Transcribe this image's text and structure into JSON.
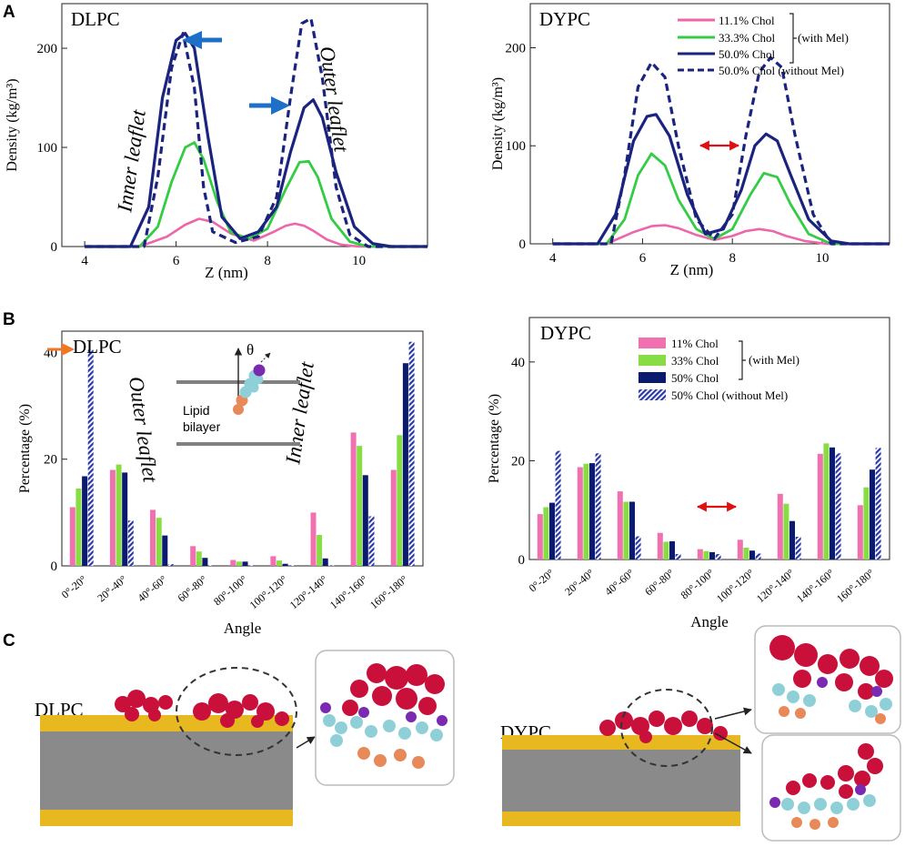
{
  "panels": {
    "A": "A",
    "B": "B",
    "C": "C"
  },
  "colors": {
    "pink": "#ee66aa",
    "green": "#33cc44",
    "navy": "#1a237e",
    "bar_pink": "#f070b0",
    "bar_green": "#88dd44",
    "bar_navy": "#0a1a6e",
    "bar_hatch": "#2b3aa8",
    "arrow_blue": "#1e6fc8",
    "arrow_red": "#dd1111",
    "arrow_orange": "#f07820",
    "lipid_yellow": "#e8b820",
    "lipid_gray": "#8a8a8a",
    "mel_red": "#c8103a",
    "chol_cyan": "#8fd0d8",
    "orange_bead": "#e8895a",
    "purple_bead": "#7a2ab0"
  },
  "annotations": {
    "inner_leaflet": "Inner leaflet",
    "outer_leaflet": "Outer leaflet",
    "theta": "θ",
    "lipid": "Lipid",
    "bilayer": "bilayer",
    "with_mel": "(with Mel)"
  },
  "structures": {
    "dlpc": "DLPC",
    "dypc": "DYPC"
  },
  "chart_data": [
    {
      "type": "line",
      "title": "DLPC",
      "xlabel": "Z (nm)",
      "ylabel": "Density (kg/m³)",
      "xlim": [
        3.5,
        11.5
      ],
      "ylim": [
        0,
        245
      ],
      "xticks": [
        4,
        6,
        8,
        10
      ],
      "yticks": [
        0,
        100,
        200
      ],
      "series": [
        {
          "name": "11.1% Chol",
          "x": [
            4.0,
            5.2,
            5.8,
            6.2,
            6.5,
            6.8,
            7.2,
            7.7,
            8.1,
            8.4,
            8.6,
            8.8,
            9.0,
            9.3,
            9.6,
            10.0,
            11.5
          ],
          "y": [
            0,
            0,
            10,
            22,
            28,
            25,
            13,
            6,
            14,
            21,
            23,
            21,
            16,
            7,
            2,
            0,
            0
          ]
        },
        {
          "name": "33.3% Chol",
          "x": [
            4.0,
            5.2,
            5.6,
            5.9,
            6.2,
            6.4,
            6.6,
            6.9,
            7.2,
            7.6,
            8.0,
            8.4,
            8.7,
            8.9,
            9.1,
            9.4,
            9.8,
            10.2,
            11.5
          ],
          "y": [
            0,
            0,
            20,
            65,
            100,
            105,
            88,
            45,
            14,
            8,
            18,
            58,
            85,
            86,
            70,
            28,
            5,
            0,
            0
          ]
        },
        {
          "name": "50.0% Chol",
          "x": [
            4.0,
            5.0,
            5.4,
            5.7,
            6.0,
            6.2,
            6.4,
            6.7,
            7.0,
            7.4,
            7.8,
            8.2,
            8.5,
            8.8,
            9.0,
            9.2,
            9.5,
            9.9,
            10.3,
            10.7,
            11.5
          ],
          "y": [
            0,
            0,
            40,
            150,
            208,
            215,
            200,
            110,
            30,
            8,
            15,
            40,
            95,
            140,
            148,
            130,
            75,
            20,
            3,
            0,
            0
          ]
        },
        {
          "name": "50.0% Chol (without Mel)",
          "x": [
            4.0,
            5.3,
            5.6,
            5.9,
            6.15,
            6.4,
            6.6,
            6.8,
            7.3,
            7.8,
            8.2,
            8.5,
            8.75,
            8.95,
            9.2,
            9.5,
            9.8,
            10.2,
            11.5
          ],
          "y": [
            0,
            0,
            70,
            180,
            215,
            160,
            60,
            15,
            4,
            10,
            50,
            150,
            225,
            230,
            170,
            60,
            12,
            0,
            0
          ]
        }
      ]
    },
    {
      "type": "line",
      "title": "DYPC",
      "xlabel": "Z (nm)",
      "ylabel": "Density (kg/m³)",
      "xlim": [
        3.5,
        11.5
      ],
      "ylim": [
        0,
        245
      ],
      "xticks": [
        4,
        6,
        8,
        10
      ],
      "yticks": [
        0,
        100,
        200
      ],
      "legend": [
        "11.1% Chol",
        "33.3% Chol",
        "50.0% Chol",
        "50.0% Chol (without Mel)"
      ],
      "series": [
        {
          "name": "11.1% Chol",
          "x": [
            4.0,
            5.2,
            5.8,
            6.2,
            6.5,
            6.8,
            7.2,
            7.6,
            8.0,
            8.3,
            8.6,
            8.9,
            9.2,
            9.6,
            10.1,
            11.5
          ],
          "y": [
            0,
            0,
            12,
            18,
            19,
            16,
            9,
            4,
            8,
            13,
            15,
            13,
            8,
            3,
            0,
            0
          ]
        },
        {
          "name": "33.3% Chol",
          "x": [
            4.0,
            5.2,
            5.6,
            5.9,
            6.2,
            6.5,
            6.8,
            7.2,
            7.6,
            8.0,
            8.4,
            8.7,
            9.0,
            9.3,
            9.7,
            10.2,
            11.5
          ],
          "y": [
            0,
            0,
            25,
            70,
            92,
            80,
            45,
            15,
            5,
            15,
            50,
            72,
            68,
            40,
            10,
            0,
            0
          ]
        },
        {
          "name": "50.0% Chol",
          "x": [
            4.0,
            5.0,
            5.4,
            5.8,
            6.1,
            6.3,
            6.6,
            7.0,
            7.4,
            7.8,
            8.2,
            8.5,
            8.75,
            9.0,
            9.3,
            9.7,
            10.2,
            10.6,
            11.5
          ],
          "y": [
            0,
            0,
            30,
            105,
            130,
            132,
            110,
            50,
            10,
            15,
            55,
            100,
            112,
            105,
            70,
            25,
            3,
            0,
            0
          ]
        },
        {
          "name": "50.0% Chol (without Mel)",
          "x": [
            4.0,
            5.3,
            5.6,
            5.9,
            6.2,
            6.5,
            6.8,
            7.2,
            7.6,
            8.0,
            8.3,
            8.6,
            8.85,
            9.1,
            9.4,
            9.8,
            10.2,
            11.5
          ],
          "y": [
            0,
            0,
            70,
            160,
            185,
            170,
            100,
            25,
            5,
            30,
            110,
            175,
            190,
            180,
            110,
            30,
            0,
            0
          ]
        }
      ]
    },
    {
      "type": "bar",
      "title": "DLPC",
      "xlabel": "Angle",
      "ylabel": "Percentage (%)",
      "ylim": [
        0,
        44
      ],
      "yticks": [
        0,
        20,
        40
      ],
      "categories": [
        "0°-20°",
        "20°-40°",
        "40°-60°",
        "60°-80°",
        "80°-100°",
        "100°-120°",
        "120°-140°",
        "140°-160°",
        "160°-180°"
      ],
      "series": [
        {
          "values": [
            11,
            18,
            10.5,
            3.7,
            1.1,
            1.8,
            10,
            25,
            18
          ]
        },
        {
          "values": [
            14.5,
            19,
            9,
            2.7,
            0.8,
            1,
            5.8,
            22.5,
            24.5
          ]
        },
        {
          "values": [
            16.8,
            17.5,
            5.7,
            1.5,
            0.8,
            0.4,
            1.4,
            17,
            38
          ]
        },
        {
          "values": [
            40.5,
            8.5,
            0.3,
            0.1,
            0.1,
            0.1,
            0.1,
            9.3,
            42
          ]
        }
      ]
    },
    {
      "type": "bar",
      "title": "DYPC",
      "xlabel": "Angle",
      "ylabel": "Percentage (%)",
      "ylim": [
        0,
        49
      ],
      "yticks": [
        0,
        20,
        40
      ],
      "categories": [
        "0°-20°",
        "20°-40°",
        "40°-60°",
        "60°-80°",
        "80°-100°",
        "100°-120°",
        "120°-140°",
        "140°-160°",
        "160°-180°"
      ],
      "legend": [
        "11% Chol",
        "33% Chol",
        "50% Chol",
        "50% Chol (without Mel)"
      ],
      "series": [
        {
          "name": "11% Chol",
          "values": [
            9.2,
            18.7,
            13.8,
            5.4,
            2.1,
            4,
            13.3,
            21.4,
            11
          ]
        },
        {
          "name": "33% Chol",
          "values": [
            10.6,
            19.4,
            11.7,
            3.6,
            1.7,
            2.4,
            11.3,
            23.5,
            14.6
          ]
        },
        {
          "name": "50% Chol",
          "values": [
            11.5,
            19.5,
            11.7,
            3.7,
            1.5,
            1.8,
            7.8,
            22.7,
            18.2
          ]
        },
        {
          "name": "50% Chol (without Mel)",
          "values": [
            22,
            21.5,
            4.7,
            1.1,
            1.1,
            1.2,
            4.6,
            21.5,
            22.6
          ]
        }
      ]
    }
  ]
}
